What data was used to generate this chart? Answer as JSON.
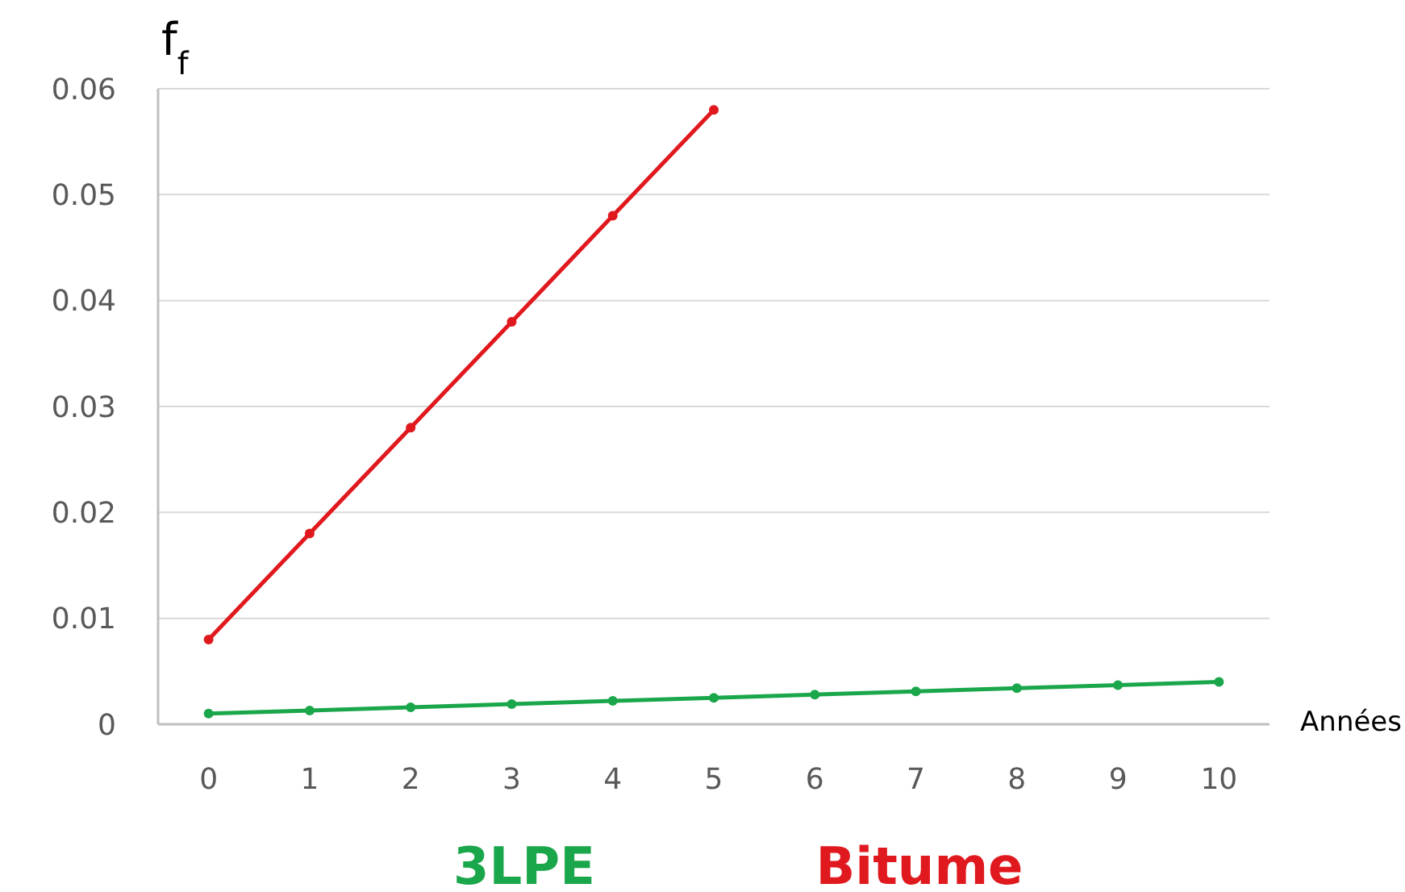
{
  "chart_data": {
    "type": "line",
    "ylabel": "f$_{f}$",
    "xlabel": "Années",
    "xlim": [
      -0.5,
      10.5
    ],
    "xticks": [
      0,
      1,
      2,
      3,
      4,
      5,
      6,
      7,
      8,
      9,
      10
    ],
    "ylim": [
      0,
      0.06
    ],
    "yticks": [
      0,
      0.01,
      0.02,
      0.03,
      0.04,
      0.05,
      0.06
    ],
    "grid": "y",
    "marker": "circle",
    "line_style": "solid",
    "legend": "bottom",
    "series": [
      {
        "name": "3LPE",
        "color": "#1aa64a",
        "x": [
          0,
          1,
          2,
          3,
          4,
          5,
          6,
          7,
          8,
          9,
          10
        ],
        "values": [
          0.001,
          0.0013,
          0.0016,
          0.0019,
          0.0022,
          0.0025,
          0.0028,
          0.0031,
          0.0034,
          0.0037,
          0.004
        ]
      },
      {
        "name": "Bitume",
        "color": "#e0191e",
        "x": [
          0,
          1,
          2,
          3,
          4,
          5
        ],
        "values": [
          0.008,
          0.018,
          0.028,
          0.038,
          0.048,
          0.058
        ]
      }
    ]
  }
}
